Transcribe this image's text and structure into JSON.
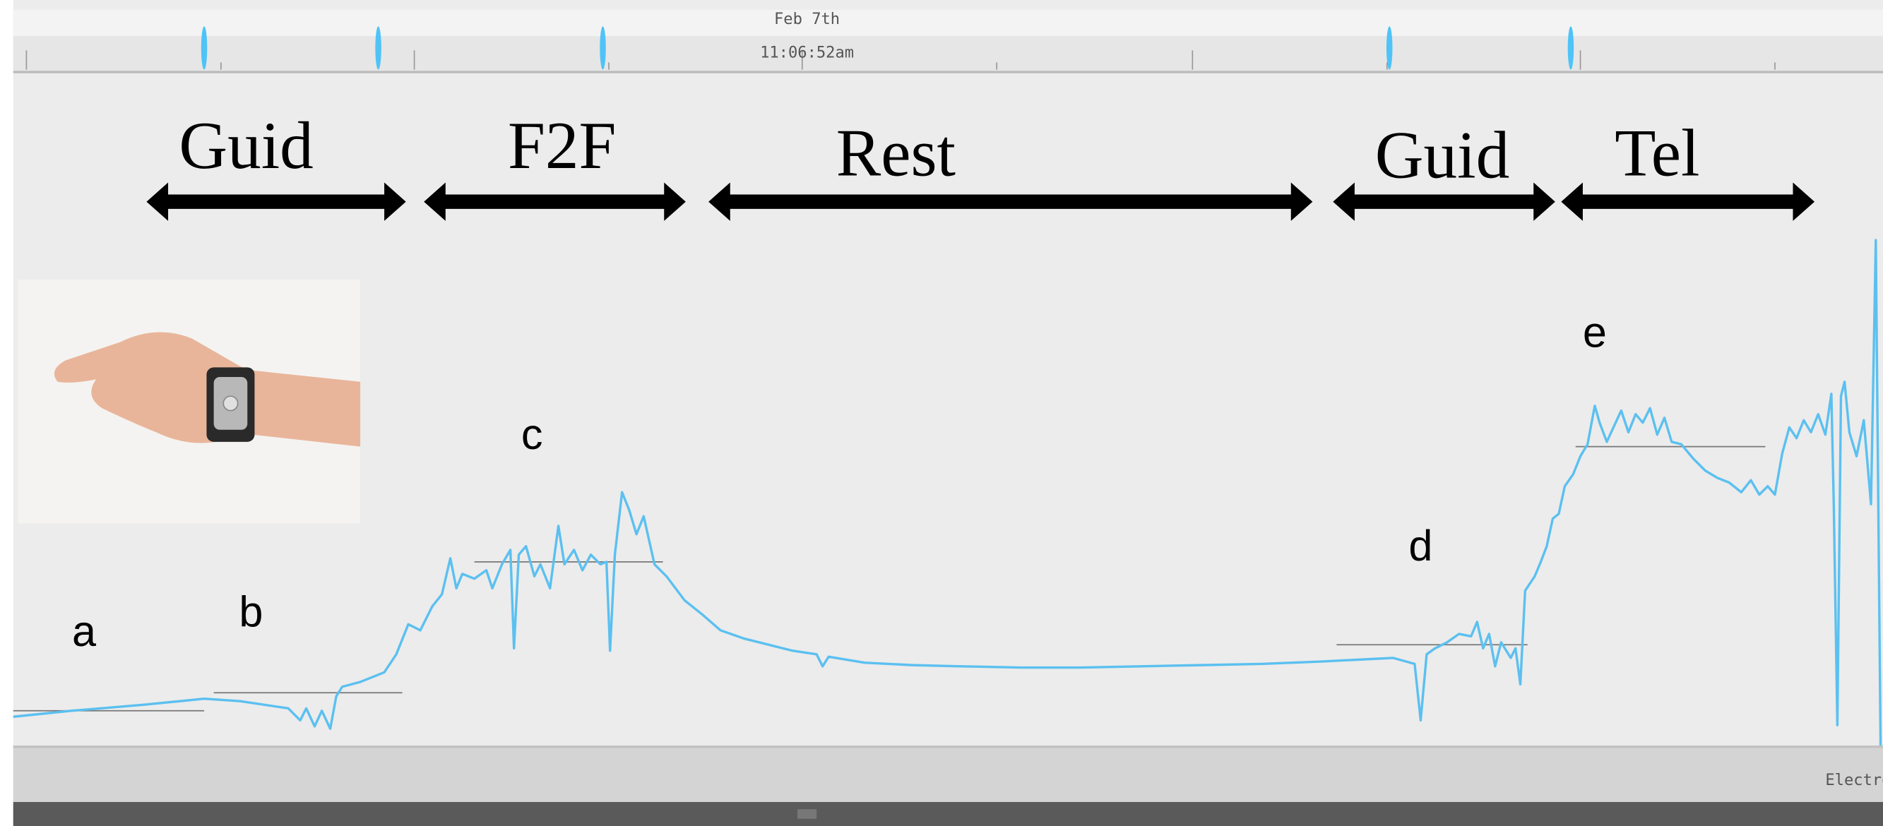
{
  "timeline": {
    "date": "Feb 7th",
    "time": "11:06:52am"
  },
  "phases": [
    "Guid",
    "F2F",
    "Rest",
    "Guid",
    "Tel"
  ],
  "points": [
    "a",
    "b",
    "c",
    "d",
    "e"
  ],
  "footer": {
    "channel": "Electrodermal"
  }
}
